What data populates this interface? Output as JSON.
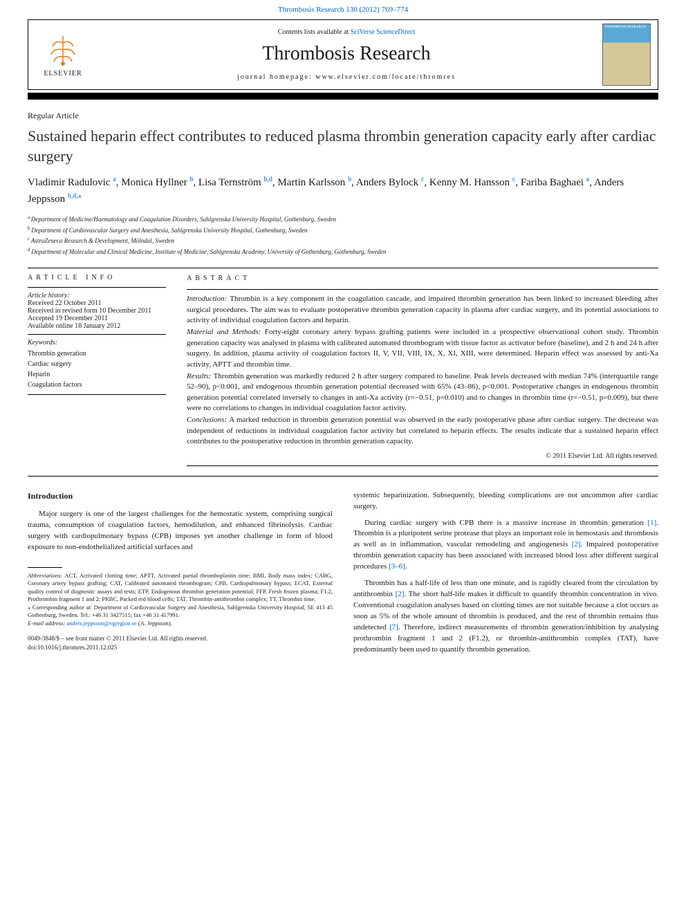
{
  "top_citation": "Thrombosis Research 130 (2012) 769–774",
  "header": {
    "elsevier_label": "ELSEVIER",
    "contents_prefix": "Contents lists available at ",
    "contents_link": "SciVerse ScienceDirect",
    "journal_name": "Thrombosis Research",
    "homepage_prefix": "journal homepage: ",
    "homepage_url": "www.elsevier.com/locate/thromres",
    "cover_text": "THROMBOSIS RESEARCH"
  },
  "article_type": "Regular Article",
  "title": "Sustained heparin effect contributes to reduced plasma thrombin generation capacity early after cardiac surgery",
  "authors": [
    {
      "name": "Vladimir Radulovic",
      "aff": "a"
    },
    {
      "name": "Monica Hyllner",
      "aff": "b"
    },
    {
      "name": "Lisa Ternström",
      "aff": "b,d"
    },
    {
      "name": "Martin Karlsson",
      "aff": "b"
    },
    {
      "name": "Anders Bylock",
      "aff": "c"
    },
    {
      "name": "Kenny M. Hansson",
      "aff": "c"
    },
    {
      "name": "Fariba Baghaei",
      "aff": "a"
    },
    {
      "name": "Anders Jeppsson",
      "aff": "b,d,",
      "corr": true
    }
  ],
  "affiliations": [
    {
      "sup": "a",
      "text": "Department of Medicine/Haematology and Coagulation Disorders, Sahlgrenska University Hospital, Gothenburg, Sweden"
    },
    {
      "sup": "b",
      "text": "Department of Cardiovascular Surgery and Anesthesia, Sahlgrenska University Hospital, Gothenburg, Sweden"
    },
    {
      "sup": "c",
      "text": "AstraZeneca Research & Development, Mölndal, Sweden"
    },
    {
      "sup": "d",
      "text": "Department of Molecular and Clinical Medicine, Institute of Medicine, Sahlgrenska Academy, University of Gothenburg, Gothenburg, Sweden"
    }
  ],
  "article_info": {
    "header": "ARTICLE INFO",
    "history_label": "Article history:",
    "history": [
      "Received 22 October 2011",
      "Received in revised form 10 December 2011",
      "Accepted 19 December 2011",
      "Available online 18 January 2012"
    ],
    "keywords_label": "Keywords:",
    "keywords": [
      "Thrombin generation",
      "Cardiac surgery",
      "Heparin",
      "Coagulation factors"
    ]
  },
  "abstract": {
    "header": "ABSTRACT",
    "sections": [
      {
        "label": "Introduction:",
        "text": "Thrombin is a key component in the coagulation cascade, and impaired thrombin generation has been linked to increased bleeding after surgical procedures. The aim was to evaluate postoperative thrombin generation capacity in plasma after cardiac surgery, and its potential associations to activity of individual coagulation factors and heparin."
      },
      {
        "label": "Material and Methods:",
        "text": "Forty-eight coronary artery bypass grafting patients were included in a prospective observational cohort study. Thrombin generation capacity was analysed in plasma with calibrated automated thrombogram with tissue factor as activator before (baseline), and 2 h and 24 h after surgery. In addition, plasma activity of coagulation factors II, V, VII, VIII, IX, X, XI, XIII, were determined. Heparin effect was assessed by anti-Xa activity, APTT and thrombin time."
      },
      {
        "label": "Results:",
        "text": "Thrombin generation was markedly reduced 2 h after surgery compared to baseline. Peak levels decreased with median 74% (interquartile range 52–90), p<0.001, and endogenous thrombin generation potential decreased with 65% (43–86), p<0.001. Postoperative changes in endogenous thrombin generation potential correlated inversely to changes in anti-Xa activity (r=−0.51, p=0.010) and to changes in thrombin time (r=−0.51, p=0.009), but there were no correlations to changes in individual coagulation factor activity."
      },
      {
        "label": "Conclusions:",
        "text": "A marked reduction in thrombin generation potential was observed in the early postoperative phase after cardiac surgery. The decrease was independent of reductions in individual coagulation factor activity but correlated to heparin effects. The results indicate that a sustained heparin effect contributes to the postoperative reduction in thrombin generation capacity."
      }
    ],
    "copyright": "© 2011 Elsevier Ltd. All rights reserved."
  },
  "body": {
    "heading": "Introduction",
    "left_paras": [
      "Major surgery is one of the largest challenges for the hemostatic system, comprising surgical trauma, consumption of coagulation factors, hemodilution, and enhanced fibrinolysis. Cardiac surgery with cardiopulmonary bypass (CPB) imposes yet another challenge in form of blood exposure to non-endothelialized artificial surfaces and"
    ],
    "right_paras": [
      {
        "text": "systemic heparinization. Subsequently, bleeding complications are not uncommon after cardiac surgery.",
        "indent": false
      },
      {
        "text": "During cardiac surgery with CPB there is a massive increase in thrombin generation [1]. Thrombin is a pluripotent serine protease that plays an important role in hemostasis and thrombosis as well as in inflammation, vascular remodeling and angiogenesis [2]. Impaired postoperative thrombin generation capacity has been associated with increased blood loss after different surgical procedures [3–6].",
        "indent": true,
        "refs": [
          "[1]",
          "[2]",
          "[3–6]"
        ]
      },
      {
        "text": "Thrombin has a half-life of less than one minute, and is rapidly cleared from the circulation by antithrombin [2]. The short half-life makes it difficult to quantify thrombin concentration in vivo. Conventional coagulation analyses based on clotting times are not suitable because a clot occurs as soon as 5% of the whole amount of thrombin is produced, and the rest of thrombin remains thus undetected [7]. Therefore, indirect measurements of thrombin generation/inhibition by analysing prothrombin fragment 1 and 2 (F1.2), or thrombin-antithrombin complex (TAT), have predominantly been used to quantify thrombin generation.",
        "indent": true,
        "refs": [
          "[2]",
          "[7]"
        ]
      }
    ]
  },
  "footnotes": {
    "abbreviations_label": "Abbreviations:",
    "abbreviations": "ACT, Activated clotting time; APTT, Activated partial thromboplastin time; BMI, Body mass index; CABG, Coronary artery bypass grafting; CAT, Calibrated automated thrombogram; CPB, Cardiopulmonary bypass; ECAT, External quality control of diagnostic assays and tests; ETP, Endogenous thrombin generation potential; FFP, Fresh frozen plasma; F1.2, Prothrombin fragment 1 and 2; PRBC, Packed red blood cells; TAT, Thrombin-antithrombin complex; TT, Thrombin time.",
    "corr_label": "⁎ Corresponding author at:",
    "corr_text": "Department of Cardiovascular Surgery and Anesthesia, Sahlgrenska University Hospital, SE 413 45 Gothenburg, Sweden. Tel.: +46 31 3427515; fax +46 31 417991.",
    "email_label": "E-mail address:",
    "email": "anders.jeppsson@vgregion.se",
    "email_name": "(A. Jeppsson)."
  },
  "footer": {
    "line1": "0049-3848/$ – see front matter © 2011 Elsevier Ltd. All rights reserved.",
    "doi": "doi:10.1016/j.thromres.2011.12.025"
  },
  "colors": {
    "link": "#0066cc",
    "text": "#1a1a1a",
    "background": "#ffffff",
    "cover_top": "#5ba8d4",
    "cover_bottom": "#d4c89a"
  }
}
